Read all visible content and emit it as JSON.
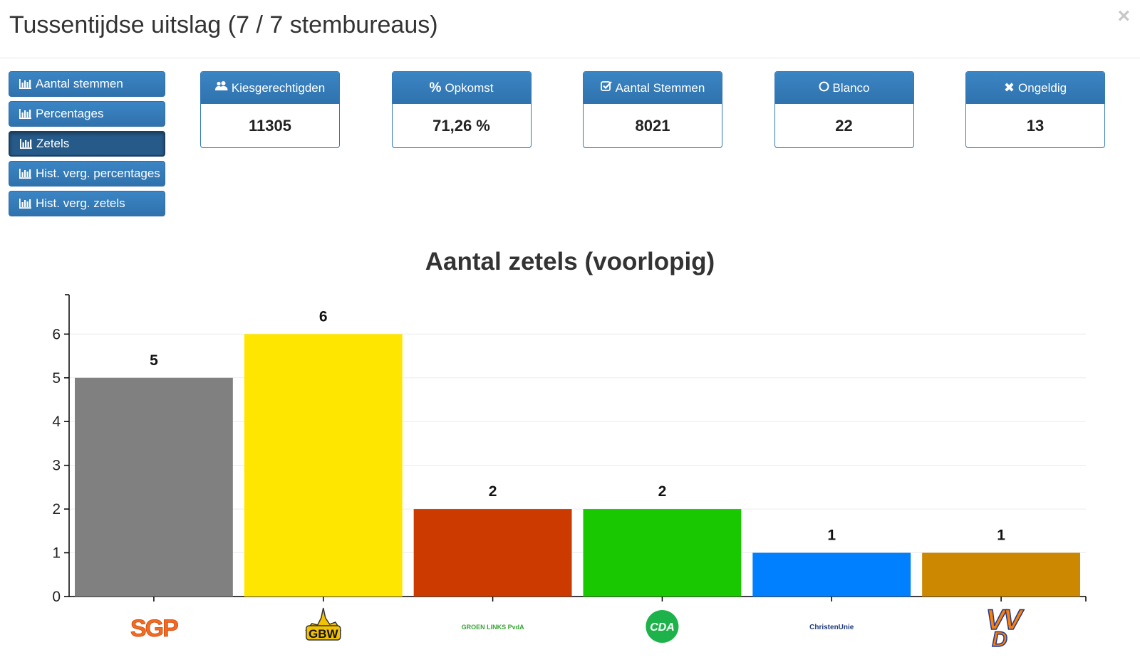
{
  "header": {
    "title": "Tussentijdse uitslag (7 / 7 stembureaus)",
    "close_symbol": "×"
  },
  "nav": {
    "icon": "bar-chart-icon",
    "items": [
      {
        "label": "Aantal stemmen",
        "active": false
      },
      {
        "label": "Percentages",
        "active": false
      },
      {
        "label": "Zetels",
        "active": true
      },
      {
        "label": "Hist. verg. percentages",
        "active": false
      },
      {
        "label": "Hist. verg. zetels",
        "active": false
      }
    ]
  },
  "stats": [
    {
      "icon": "users-icon",
      "label": "Kiesgerechtigden",
      "value": "11305"
    },
    {
      "icon": "percent-icon",
      "label": "Opkomst",
      "value": "71,26 %"
    },
    {
      "icon": "check-square-icon",
      "label": "Aantal Stemmen",
      "value": "8021"
    },
    {
      "icon": "circle-icon",
      "label": "Blanco",
      "value": "22"
    },
    {
      "icon": "times-icon",
      "label": "Ongeldig",
      "value": "13"
    }
  ],
  "colors": {
    "primary": "#337ab7",
    "primary_dark": "#265a88"
  },
  "chart_data": {
    "type": "bar",
    "title": "Aantal zetels (voorlopig)",
    "xlabel": "",
    "ylabel": "",
    "ylim": [
      0,
      6.9
    ],
    "yticks": [
      0,
      1,
      2,
      3,
      4,
      5,
      6
    ],
    "grid": true,
    "legend": "none",
    "categories": [
      "SGP",
      "GBW",
      "GroenLinks PvdA",
      "CDA",
      "ChristenUnie",
      "VVD"
    ],
    "values": [
      5,
      6,
      2,
      2,
      1,
      1
    ],
    "bar_colors": [
      "#808080",
      "#ffe600",
      "#cc3a00",
      "#19c800",
      "#0080ff",
      "#cc8800"
    ],
    "logos": [
      {
        "name": "sgp-logo",
        "text": "SGP"
      },
      {
        "name": "gbw-logo",
        "text": "GBW"
      },
      {
        "name": "groenlinks-pvda-logo",
        "text": "GROEN LINKS PvdA"
      },
      {
        "name": "cda-logo",
        "text": "CDA"
      },
      {
        "name": "christenunie-logo",
        "text": "ChristenUnie"
      },
      {
        "name": "vvd-logo",
        "text": "VVD"
      }
    ]
  }
}
